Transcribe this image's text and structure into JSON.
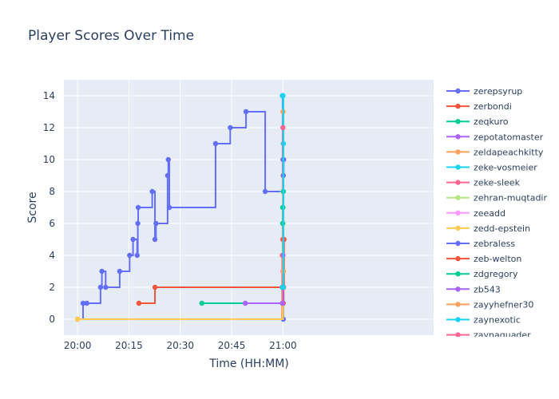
{
  "chart_data": {
    "type": "line",
    "line_shape": "step",
    "title": "Player Scores Over Time",
    "xlabel": "Time (HH:MM)",
    "ylabel": "Score",
    "x_range_minutes": [
      -4,
      104
    ],
    "ylim": [
      -1,
      15
    ],
    "x_ticks": [
      {
        "minute": 0,
        "label": "20:00"
      },
      {
        "minute": 15,
        "label": "20:15"
      },
      {
        "minute": 30,
        "label": "20:30"
      },
      {
        "minute": 45,
        "label": "20:45"
      },
      {
        "minute": 60,
        "label": "21:00"
      }
    ],
    "y_ticks": [
      0,
      2,
      4,
      6,
      8,
      10,
      12,
      14
    ],
    "grid": true,
    "legend_position": "right",
    "series": [
      {
        "name": "zerepsyrup",
        "color": "#636efa",
        "points": [
          [
            0,
            0
          ],
          [
            1.6,
            1
          ],
          [
            2.7,
            1
          ],
          [
            6.7,
            2
          ],
          [
            7.1,
            3
          ],
          [
            8.2,
            2
          ],
          [
            12.3,
            3
          ],
          [
            15.2,
            4
          ],
          [
            16.2,
            5
          ],
          [
            17.4,
            4
          ],
          [
            17.6,
            6
          ],
          [
            17.7,
            7
          ],
          [
            21.8,
            8
          ],
          [
            22.6,
            5
          ],
          [
            22.9,
            6
          ],
          [
            26.3,
            9
          ],
          [
            26.5,
            10
          ],
          [
            26.8,
            7
          ],
          [
            40.3,
            11
          ],
          [
            44.6,
            12
          ],
          [
            49.2,
            13
          ],
          [
            54.8,
            8
          ],
          [
            59.9,
            14
          ],
          [
            60.0,
            10
          ],
          [
            60.1,
            0
          ]
        ]
      },
      {
        "name": "zerbondi",
        "color": "#ef553b",
        "points": [
          [
            17.9,
            1
          ],
          [
            22.6,
            2
          ],
          [
            60.1,
            1
          ],
          [
            60.2,
            2
          ],
          [
            60.3,
            5
          ]
        ]
      },
      {
        "name": "zeqkuro",
        "color": "#00cc96",
        "points": [
          [
            36.3,
            1
          ],
          [
            59.9,
            7
          ],
          [
            60.0,
            6
          ],
          [
            60.1,
            11
          ]
        ]
      },
      {
        "name": "zepotatomaster",
        "color": "#ab63fa",
        "points": [
          [
            49.0,
            1
          ],
          [
            59.8,
            1
          ],
          [
            60.0,
            3
          ]
        ]
      },
      {
        "name": "zeldapeachkitty",
        "color": "#ffa15a",
        "points": [
          [
            0,
            0
          ],
          [
            59.7,
            4
          ],
          [
            60.0,
            13
          ]
        ]
      },
      {
        "name": "zeke-vosmeier",
        "color": "#19d3f3",
        "points": [
          [
            59.8,
            2
          ],
          [
            60.0,
            14
          ],
          [
            60.1,
            11
          ]
        ]
      },
      {
        "name": "zeke-sleek",
        "color": "#ff6692",
        "points": [
          [
            59.9,
            5
          ],
          [
            60.0,
            12
          ],
          [
            60.1,
            5
          ]
        ]
      },
      {
        "name": "zehran-muqtadir",
        "color": "#b6e880",
        "points": [
          [
            60.0,
            8
          ],
          [
            60.1,
            6
          ]
        ]
      },
      {
        "name": "zeeadd",
        "color": "#ff97ff",
        "points": [
          [
            59.9,
            3
          ],
          [
            60.0,
            4
          ]
        ]
      },
      {
        "name": "zedd-epstein",
        "color": "#fecb52",
        "points": [
          [
            0,
            0
          ],
          [
            60.0,
            9
          ]
        ]
      },
      {
        "name": "zebraless",
        "color": "#636efa",
        "points": [
          [
            60.0,
            2
          ],
          [
            60.1,
            9
          ],
          [
            60.2,
            10
          ]
        ]
      },
      {
        "name": "zeb-welton",
        "color": "#ef553b",
        "points": [
          [
            59.9,
            1
          ],
          [
            60.1,
            3
          ],
          [
            60.2,
            5
          ]
        ]
      },
      {
        "name": "zdgregory",
        "color": "#00cc96",
        "points": [
          [
            59.9,
            6
          ],
          [
            60.0,
            7
          ],
          [
            60.1,
            8
          ]
        ]
      },
      {
        "name": "zb543",
        "color": "#ab63fa",
        "points": [
          [
            59.9,
            1
          ],
          [
            60.0,
            4
          ]
        ]
      },
      {
        "name": "zayyhefner30",
        "color": "#ffa15a",
        "points": [
          [
            60.0,
            13
          ],
          [
            60.1,
            3
          ]
        ]
      },
      {
        "name": "zaynexotic",
        "color": "#19d3f3",
        "points": [
          [
            59.8,
            14
          ],
          [
            60.0,
            14
          ],
          [
            60.1,
            2
          ]
        ]
      },
      {
        "name": "zaynaquader",
        "color": "#ff6692",
        "points": [
          [
            60.0,
            12
          ]
        ]
      }
    ]
  }
}
